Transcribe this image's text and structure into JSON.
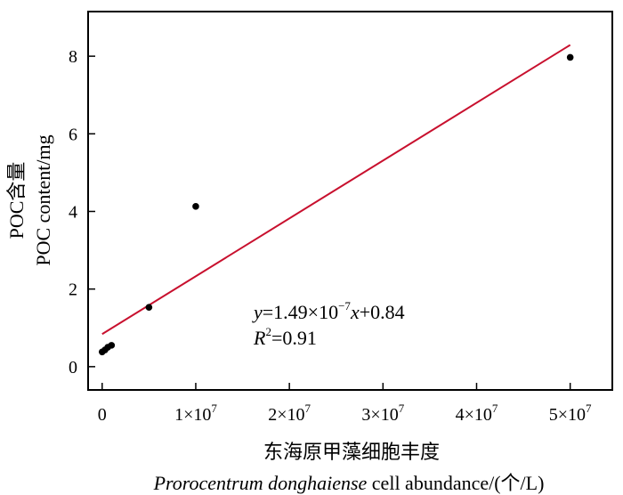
{
  "chart_data": {
    "type": "scatter",
    "points": [
      {
        "x": 0,
        "y": 0.38
      },
      {
        "x": 300000,
        "y": 0.43
      },
      {
        "x": 600000,
        "y": 0.5
      },
      {
        "x": 1000000,
        "y": 0.55
      },
      {
        "x": 5000000,
        "y": 1.53
      },
      {
        "x": 10000000,
        "y": 4.13
      },
      {
        "x": 50000000,
        "y": 7.97
      }
    ],
    "fit_line": {
      "slope": 1.49e-07,
      "intercept": 0.84,
      "x_range": [
        0,
        50000000
      ],
      "color": "#c8102e"
    },
    "xlim": [
      -1500000,
      54500000
    ],
    "ylim": [
      -0.6,
      9.15
    ],
    "x_ticks": [
      {
        "value": 0,
        "label": "0"
      },
      {
        "value": 10000000,
        "base": "1×10",
        "exp": "7"
      },
      {
        "value": 20000000,
        "base": "2×10",
        "exp": "7"
      },
      {
        "value": 30000000,
        "base": "3×10",
        "exp": "7"
      },
      {
        "value": 40000000,
        "base": "4×10",
        "exp": "7"
      },
      {
        "value": 50000000,
        "base": "5×10",
        "exp": "7"
      }
    ],
    "y_ticks": [
      {
        "value": 0,
        "label": "0"
      },
      {
        "value": 2,
        "label": "2"
      },
      {
        "value": 4,
        "label": "4"
      },
      {
        "value": 6,
        "label": "6"
      },
      {
        "value": 8,
        "label": "8"
      }
    ],
    "xlabel_cn": "东海原甲藻细胞丰度",
    "xlabel_en_italic": "Prorocentrum donghaiense",
    "xlabel_en_rest": " cell abundance/(个/L)",
    "ylabel_cn": "POC含量",
    "ylabel_en": "POC content/mg",
    "equation": {
      "y": "y",
      "eq_mid": "=1.49×10",
      "eq_exp": "−7",
      "x": "x",
      "eq_end": "+0.84",
      "r": "R",
      "r_exp": "2",
      "r_end": "=0.91"
    }
  }
}
